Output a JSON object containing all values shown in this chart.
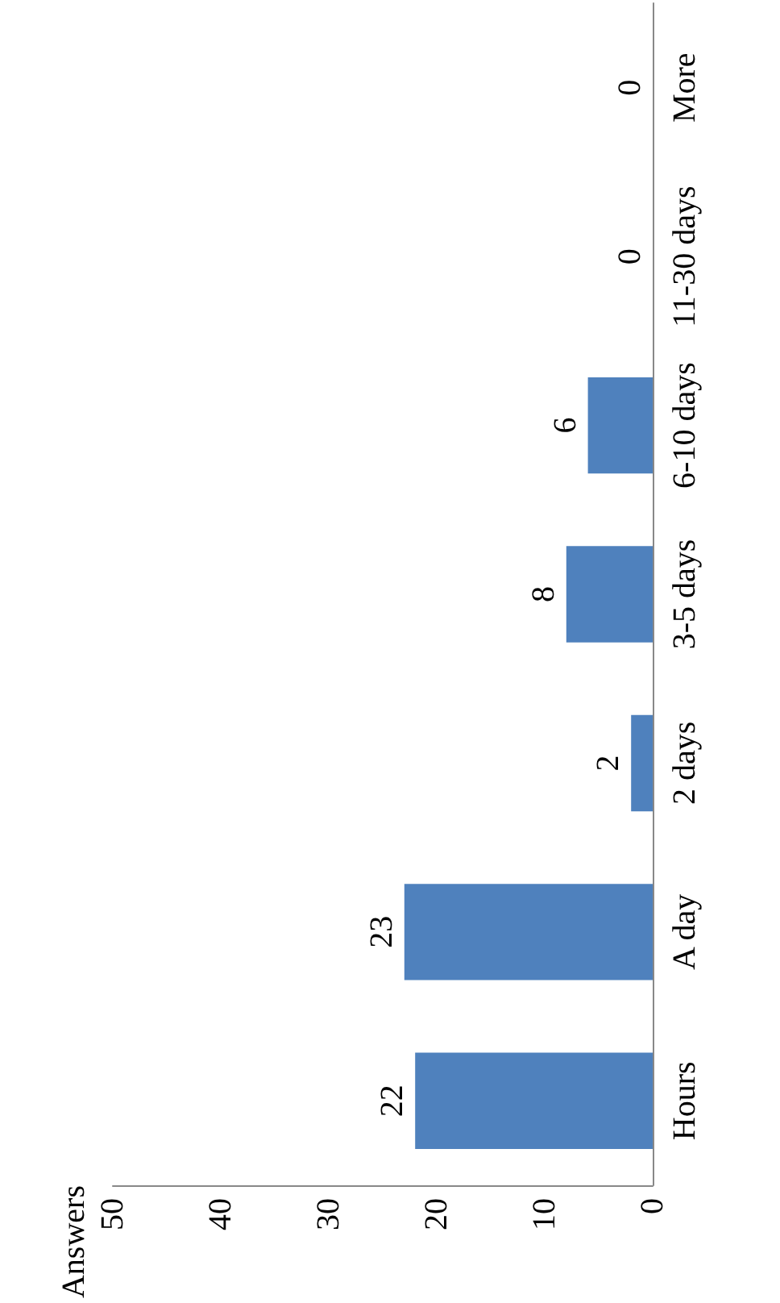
{
  "chart_data": {
    "type": "bar",
    "orientation": "horizontal",
    "ylabel": "Answers",
    "categories": [
      "More",
      "11-30 days",
      "6-10 days",
      "3-5 days",
      "2 days",
      "A day",
      "Hours"
    ],
    "values": [
      0,
      0,
      6,
      8,
      2,
      23,
      22
    ],
    "color": "#4f81bd",
    "xlim": [
      50,
      0
    ],
    "xticks": [
      50,
      40,
      30,
      20,
      10,
      0
    ],
    "grid": false,
    "data_labels": true
  }
}
